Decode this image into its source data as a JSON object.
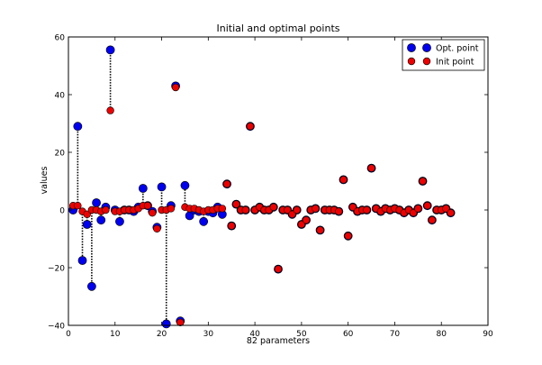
{
  "chart_data": {
    "type": "scatter",
    "title": "Initial and optimal points",
    "xlabel": "82 parameters",
    "ylabel": "values",
    "xlim": [
      0,
      90
    ],
    "ylim": [
      -40,
      60
    ],
    "x_ticks": [
      0,
      10,
      20,
      30,
      40,
      50,
      60,
      70,
      80,
      90
    ],
    "y_ticks": [
      -40,
      -20,
      0,
      20,
      40,
      60
    ],
    "grid": false,
    "legend_position": "top-right",
    "colors": {
      "opt": "#0000ee",
      "init": "#ee0000"
    },
    "series": [
      {
        "name": "Opt. point",
        "key": "opt"
      },
      {
        "name": "Init point",
        "key": "init"
      }
    ],
    "points": [
      {
        "x": 1,
        "opt": 0.0,
        "init": 1.5
      },
      {
        "x": 2,
        "opt": 29.0,
        "init": 1.5
      },
      {
        "x": 3,
        "opt": -17.5,
        "init": -0.5
      },
      {
        "x": 4,
        "opt": -5.0,
        "init": -1.5
      },
      {
        "x": 5,
        "opt": -26.5,
        "init": 0.0
      },
      {
        "x": 6,
        "opt": 2.5,
        "init": 0.0
      },
      {
        "x": 7,
        "opt": -3.5,
        "init": -0.5
      },
      {
        "x": 8,
        "opt": 1.0,
        "init": 0.0
      },
      {
        "x": 9,
        "opt": 55.5,
        "init": 34.5
      },
      {
        "x": 10,
        "opt": 0.0,
        "init": -0.5
      },
      {
        "x": 11,
        "opt": -4.0,
        "init": -0.5
      },
      {
        "x": 12,
        "opt": 0.0,
        "init": 0.0
      },
      {
        "x": 13,
        "opt": 0.0,
        "init": 0.0
      },
      {
        "x": 14,
        "opt": -0.5,
        "init": 0.0
      },
      {
        "x": 15,
        "opt": 1.0,
        "init": 0.5
      },
      {
        "x": 16,
        "opt": 7.5,
        "init": 1.5
      },
      {
        "x": 17,
        "opt": 1.5,
        "init": 1.5
      },
      {
        "x": 18,
        "opt": -0.5,
        "init": -1.0
      },
      {
        "x": 19,
        "opt": -6.0,
        "init": -6.5
      },
      {
        "x": 20,
        "opt": 8.0,
        "init": 0.0
      },
      {
        "x": 21,
        "opt": -39.5,
        "init": 0.0
      },
      {
        "x": 22,
        "opt": 1.5,
        "init": 0.5
      },
      {
        "x": 23,
        "opt": 43.0,
        "init": 42.5
      },
      {
        "x": 24,
        "opt": -38.5,
        "init": -39.0
      },
      {
        "x": 25,
        "opt": 8.5,
        "init": 1.0
      },
      {
        "x": 26,
        "opt": -2.0,
        "init": 0.5
      },
      {
        "x": 27,
        "opt": 0.0,
        "init": 0.5
      },
      {
        "x": 28,
        "opt": -0.5,
        "init": 0.0
      },
      {
        "x": 29,
        "opt": -4.0,
        "init": -0.5
      },
      {
        "x": 30,
        "opt": -0.5,
        "init": 0.0
      },
      {
        "x": 31,
        "opt": -1.0,
        "init": 0.0
      },
      {
        "x": 32,
        "opt": 1.0,
        "init": 0.5
      },
      {
        "x": 33,
        "opt": -1.5,
        "init": 0.5
      },
      {
        "x": 34,
        "opt": 9.0,
        "init": 9.0
      },
      {
        "x": 35,
        "opt": -5.5,
        "init": -5.5
      },
      {
        "x": 36,
        "opt": 2.0,
        "init": 2.0
      },
      {
        "x": 37,
        "opt": 0.0,
        "init": 0.0
      },
      {
        "x": 38,
        "opt": 0.0,
        "init": 0.0
      },
      {
        "x": 39,
        "opt": 29.0,
        "init": 29.0
      },
      {
        "x": 40,
        "opt": 0.0,
        "init": 0.0
      },
      {
        "x": 41,
        "opt": 1.0,
        "init": 1.0
      },
      {
        "x": 42,
        "opt": 0.0,
        "init": 0.0
      },
      {
        "x": 43,
        "opt": 0.0,
        "init": 0.0
      },
      {
        "x": 44,
        "opt": 1.0,
        "init": 1.0
      },
      {
        "x": 45,
        "opt": -20.5,
        "init": -20.5
      },
      {
        "x": 46,
        "opt": 0.0,
        "init": 0.0
      },
      {
        "x": 47,
        "opt": 0.0,
        "init": 0.0
      },
      {
        "x": 48,
        "opt": -1.5,
        "init": -1.5
      },
      {
        "x": 49,
        "opt": 0.0,
        "init": 0.0
      },
      {
        "x": 50,
        "opt": -5.0,
        "init": -5.0
      },
      {
        "x": 51,
        "opt": -3.5,
        "init": -3.5
      },
      {
        "x": 52,
        "opt": 0.0,
        "init": 0.0
      },
      {
        "x": 53,
        "opt": 0.5,
        "init": 0.5
      },
      {
        "x": 54,
        "opt": -7.0,
        "init": -7.0
      },
      {
        "x": 55,
        "opt": 0.0,
        "init": 0.0
      },
      {
        "x": 56,
        "opt": 0.0,
        "init": 0.0
      },
      {
        "x": 57,
        "opt": 0.0,
        "init": 0.0
      },
      {
        "x": 58,
        "opt": -0.5,
        "init": -0.5
      },
      {
        "x": 59,
        "opt": 10.5,
        "init": 10.5
      },
      {
        "x": 60,
        "opt": -9.0,
        "init": -9.0
      },
      {
        "x": 61,
        "opt": 1.0,
        "init": 1.0
      },
      {
        "x": 62,
        "opt": -0.5,
        "init": -0.5
      },
      {
        "x": 63,
        "opt": 0.0,
        "init": 0.0
      },
      {
        "x": 64,
        "opt": 0.0,
        "init": 0.0
      },
      {
        "x": 65,
        "opt": 14.5,
        "init": 14.5
      },
      {
        "x": 66,
        "opt": 0.5,
        "init": 0.5
      },
      {
        "x": 67,
        "opt": -0.5,
        "init": -0.5
      },
      {
        "x": 68,
        "opt": 0.5,
        "init": 0.5
      },
      {
        "x": 69,
        "opt": 0.0,
        "init": 0.0
      },
      {
        "x": 70,
        "opt": 0.5,
        "init": 0.5
      },
      {
        "x": 71,
        "opt": 0.0,
        "init": 0.0
      },
      {
        "x": 72,
        "opt": -1.0,
        "init": -1.0
      },
      {
        "x": 73,
        "opt": 0.0,
        "init": 0.0
      },
      {
        "x": 74,
        "opt": -1.0,
        "init": -1.0
      },
      {
        "x": 75,
        "opt": 0.5,
        "init": 0.5
      },
      {
        "x": 76,
        "opt": 10.0,
        "init": 10.0
      },
      {
        "x": 77,
        "opt": 1.5,
        "init": 1.5
      },
      {
        "x": 78,
        "opt": -3.5,
        "init": -3.5
      },
      {
        "x": 79,
        "opt": 0.0,
        "init": 0.0
      },
      {
        "x": 80,
        "opt": 0.0,
        "init": 0.0
      },
      {
        "x": 81,
        "opt": 0.5,
        "init": 0.5
      },
      {
        "x": 82,
        "opt": -1.0,
        "init": -1.0
      }
    ]
  }
}
